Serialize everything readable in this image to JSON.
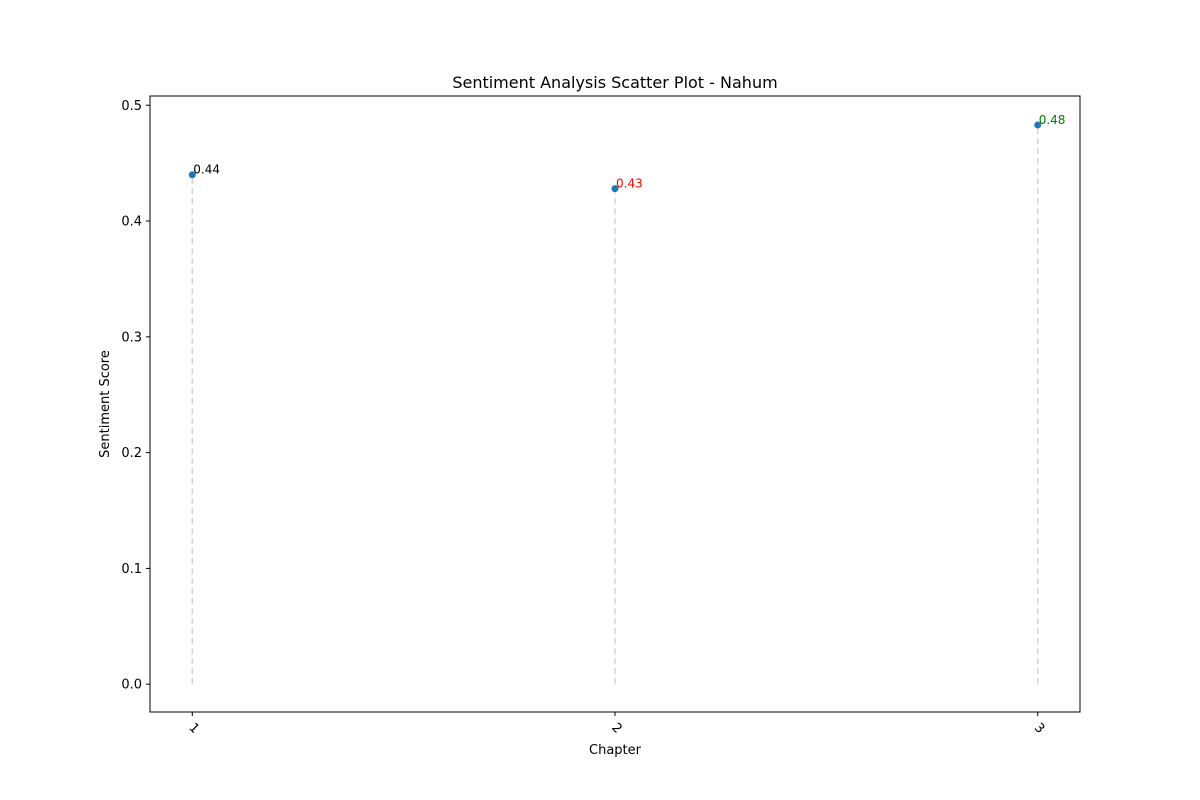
{
  "chart_data": {
    "type": "scatter",
    "title": "Sentiment Analysis Scatter Plot - Nahum",
    "xlabel": "Chapter",
    "ylabel": "Sentiment Score",
    "x": [
      1,
      2,
      3
    ],
    "x_tick_labels": [
      "1",
      "2",
      "3"
    ],
    "x_tick_rotation_deg": 45,
    "xlim": [
      0.9,
      3.1
    ],
    "ylim": [
      -0.024,
      0.508
    ],
    "y_ticks": [
      0.0,
      0.1,
      0.2,
      0.3,
      0.4,
      0.5
    ],
    "y_tick_labels": [
      "0.0",
      "0.1",
      "0.2",
      "0.3",
      "0.4",
      "0.5"
    ],
    "series": [
      {
        "values": [
          0.44,
          0.428,
          0.483
        ],
        "color": "#1f77b4"
      }
    ],
    "data_labels": [
      {
        "text": "0.44",
        "color": "#000000"
      },
      {
        "text": "0.43",
        "color": "#ff0000"
      },
      {
        "text": "0.48",
        "color": "#008000"
      }
    ],
    "stem_color": "#d3d3d3",
    "grid": false,
    "legend": "none"
  }
}
